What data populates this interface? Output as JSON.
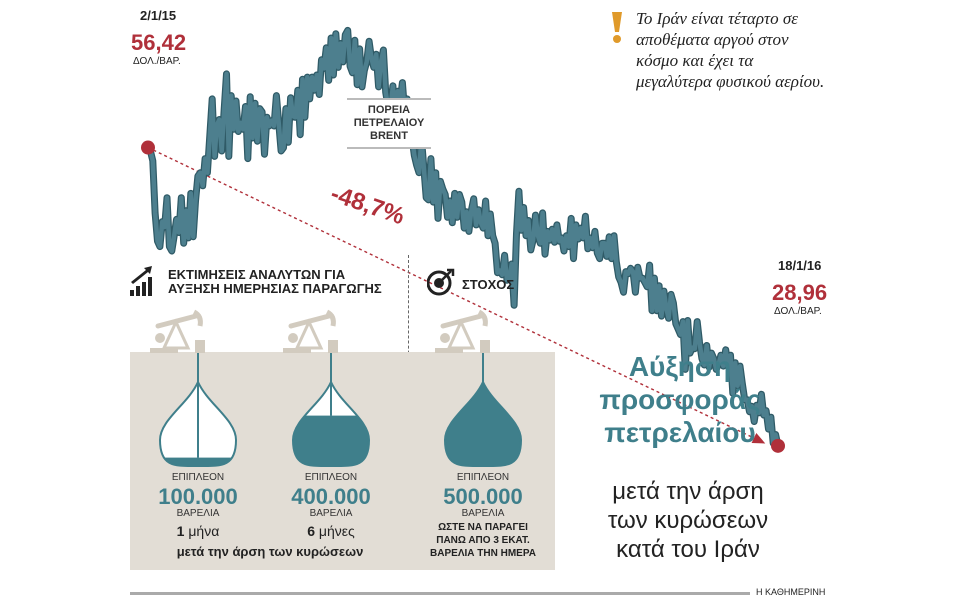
{
  "chart_data": {
    "type": "line",
    "series": [
      {
        "values": [
          56.42,
          56.1,
          55.2,
          50.4,
          47.8,
          47.3,
          49.6,
          49.1,
          51.8,
          47.3,
          46.9,
          48.3,
          49.8,
          48.6,
          51.8,
          47.6,
          50.6,
          48.1,
          52.2,
          48.2,
          51.5,
          53.8,
          54.1,
          52.9,
          55.4,
          54.1,
          57.5,
          60.9,
          55.6,
          58.5,
          59.0,
          56.1,
          59.8,
          63.2,
          55.6,
          61.2,
          58.1,
          60.7,
          57.9,
          58.7,
          58.1,
          60.2,
          55.4,
          61.1,
          57.3,
          60.5,
          57.0,
          60.0,
          59.7,
          55.8,
          59.2,
          58.4,
          58.9,
          58.4,
          61.2,
          58.6,
          56.1,
          56.4,
          60.0,
          56.9,
          61.0,
          59.3,
          59.2,
          61.7,
          57.6,
          62.7,
          59.2,
          62.9,
          60.9,
          62.9,
          61.7,
          63.1,
          61.3,
          64.5,
          63.7,
          65.6,
          62.6,
          66.5,
          63.1,
          66.9,
          63.8,
          66.0,
          64.3,
          66.8,
          67.2,
          63.9,
          63.3,
          66.3,
          62.2,
          65.5,
          62.0,
          63.5,
          64.3,
          66.2,
          64.6,
          63.8,
          65.0,
          62.0,
          64.3,
          65.4,
          61.5,
          60.2,
          60.0,
          62.1,
          58.9,
          61.6,
          60.5,
          62.4,
          59.5,
          60.9,
          58.2,
          57.4,
          55.7,
          54.8,
          54.1,
          57.3,
          54.6,
          51.8,
          51.6,
          55.4,
          51.4,
          54.1,
          49.9,
          53.3,
          52.6,
          52.1,
          50.0,
          51.5,
          49.5,
          52.2,
          50.0,
          52.1,
          51.4,
          49.0,
          50.5,
          48.7,
          50.6,
          51.7,
          49.3,
          50.7,
          49.5,
          49.0,
          51.5,
          48.3,
          50.3,
          48.3,
          47.6,
          44.9,
          45.1,
          44.7,
          46.5,
          44.2,
          44.4,
          45.7,
          41.9,
          48.5,
          52.4,
          48.8,
          50.9,
          48.3,
          49.7,
          47.0,
          47.9,
          50.2,
          48.3,
          47.6,
          50.4,
          46.6,
          48.7,
          47.9,
          48.9,
          47.7,
          49.3,
          47.8,
          48.1,
          46.9,
          48.3,
          47.3,
          49.9,
          46.2,
          49.3,
          48.0,
          49.0,
          48.1,
          50.1,
          47.1,
          48.1,
          47.2,
          48.7,
          46.7,
          46.2,
          47.6,
          47.6,
          46.4,
          48.2,
          46.2,
          48.3,
          45.9,
          44.5,
          44.0,
          43.1,
          45.0,
          44.8,
          45.3,
          45.0,
          43.1,
          45.4,
          44.4,
          44.4,
          44.0,
          43.6,
          45.6,
          41.4,
          44.4,
          41.4,
          43.7,
          40.9,
          43.2,
          41.6,
          40.7,
          42.9,
          42.1,
          40.2,
          39.7,
          39.2,
          40.4,
          36.0,
          40.5,
          37.5,
          38.0,
          37.9,
          40.4,
          38.5,
          37.0,
          36.4,
          38.2,
          36.2,
          37.5,
          37.0,
          36.0,
          36.5,
          37.3,
          36.3,
          37.8,
          36.3,
          37.3,
          33.8,
          36.6,
          34.5,
          36.3,
          34.7,
          33.2,
          33.2,
          32.1,
          32.6,
          31.2,
          32.7,
          32.0,
          33.7,
          31.8,
          32.2,
          30.5,
          31.6,
          29.2,
          30.0,
          28.96
        ]
      }
    ],
    "start": {
      "date": "2/1/15",
      "value": "56,42",
      "unit": "ΔΟΛ./ΒΑΡ."
    },
    "end": {
      "date": "18/1/16",
      "value": "28,96",
      "unit": "ΔΟΛ./ΒΑΡ."
    },
    "series_label": "ΠΟΡΕΙΑ ΠΕΤΡΕΛΑΙΟΥ BRENT",
    "change_label": "-48,7%",
    "ylim": [
      26,
      70
    ],
    "grid": false,
    "colors": {
      "line": "#4d7f8e",
      "line_edge": "#2f5a66",
      "accent": "#b0303a",
      "trend": "#b0303a"
    }
  },
  "note": {
    "icon": "exclamation-icon",
    "icon_color": "#e09a2a",
    "text": "Το Ιράν είναι τέταρτο σε αποθέματα αργού στον κόσμο και έχει τα μεγαλύτερα φυσικού αερίου."
  },
  "estimates": {
    "icon": "bar-growth-icon",
    "title_line1": "ΕΚΤΙΜΗΣΕΙΣ ΑΝΑΛΥΤΩΝ ΓΙΑ",
    "title_line2": "ΑΥΞΗΣΗ ΗΜΕΡΗΣΙΑΣ ΠΑΡΑΓΩΓΗΣ",
    "items": [
      {
        "amount_label": "ΕΠΙΠΛΕΟΝ",
        "amount": "100.000",
        "unit": "ΒΑΡΕΛΙΑ",
        "time_num": "1",
        "time_unit": " μήνα",
        "fill": 0.1
      },
      {
        "amount_label": "ΕΠΙΠΛΕΟΝ",
        "amount": "400.000",
        "unit": "ΒΑΡΕΛΙΑ",
        "time_num": "6",
        "time_unit": " μήνες",
        "fill": 0.6
      }
    ],
    "shared_caption": "μετά την άρση των κυρώσεων"
  },
  "target": {
    "icon": "target-icon",
    "title": "ΣΤΟΧΟΣ",
    "amount_label": "ΕΠΙΠΛΕΟΝ",
    "amount": "500.000",
    "unit": "ΒΑΡΕΛΙΑ",
    "fill": 1.0,
    "caption_line1": "ΩΣΤΕ ΝΑ ΠΑΡΑΓΕΙ",
    "caption_line2": "ΠΑΝΩ ΑΠΟ 3 ΕΚΑΤ.",
    "caption_line3": "ΒΑΡΕΛΙΑ ΤΗΝ ΗΜΕΡΑ"
  },
  "headline": {
    "line1": "Αύξηση",
    "line2": "προσφοράς",
    "line3": "πετρελαίου",
    "sub1": "μετά την άρση",
    "sub2": "των κυρώσεων",
    "sub3": "κατά του Ιράν"
  },
  "source": "Η ΚΑΘΗΜΕΡΙΝΗ",
  "colors": {
    "panel": "#e2ddd5",
    "drop_fill": "#3f7f8b",
    "drop_bg": "#ffffff",
    "pump": "#d2cbbf",
    "headline": "#3f7f8b"
  }
}
